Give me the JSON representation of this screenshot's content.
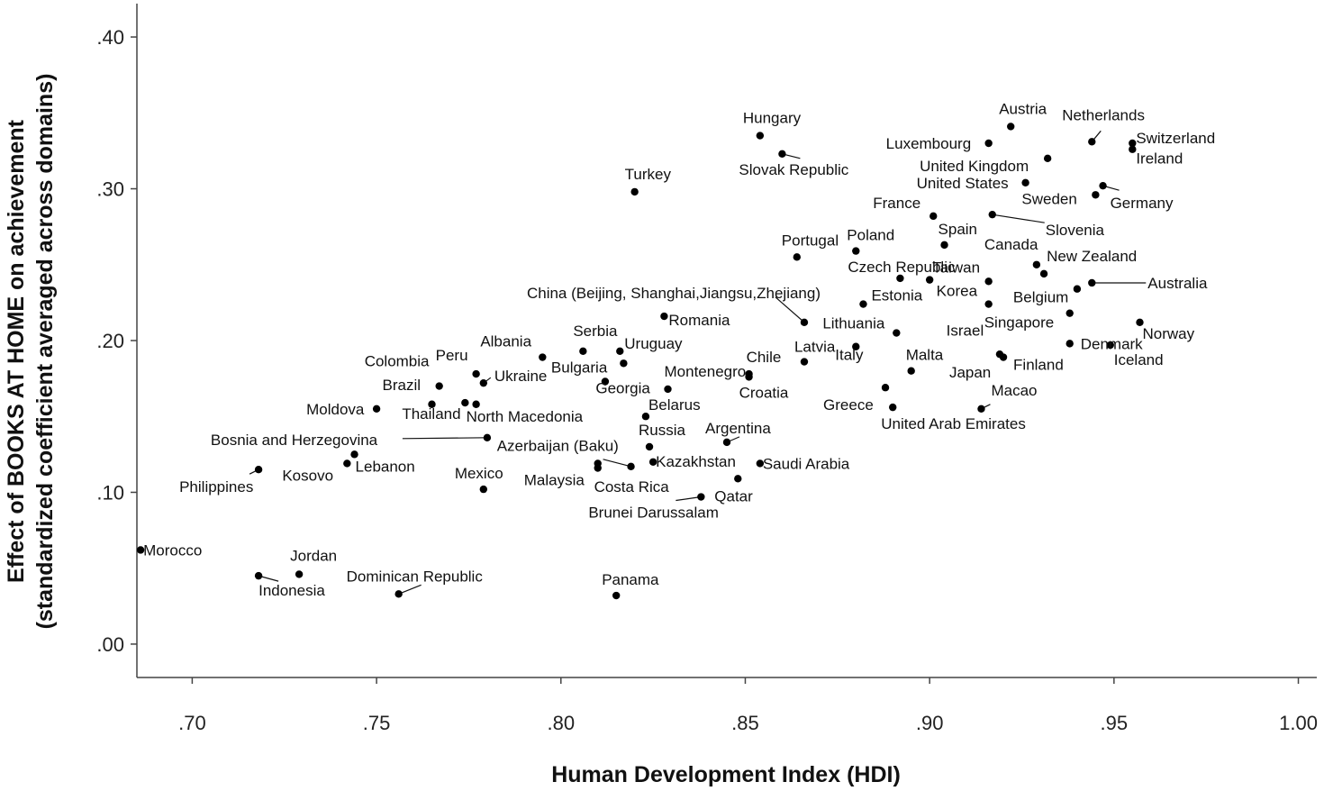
{
  "chart_data": {
    "type": "scatter",
    "title": "",
    "xlabel": "Human Development Index (HDI)",
    "ylabel_line1": "Effect of BOOKS AT HOME on achievement",
    "ylabel_line2": "(standardized coefficient averaged across domains)",
    "xlim": [
      0.685,
      1.005
    ],
    "ylim": [
      -0.022,
      0.422
    ],
    "x_ticks": [
      0.7,
      0.75,
      0.8,
      0.85,
      0.9,
      0.95,
      1.0
    ],
    "x_tick_labels": [
      ".70",
      ".75",
      ".80",
      ".85",
      ".90",
      ".95",
      "1.00"
    ],
    "y_ticks": [
      0.0,
      0.1,
      0.2,
      0.3,
      0.4
    ],
    "y_tick_labels": [
      ".00",
      ".10",
      ".20",
      ".30",
      ".40"
    ],
    "grid": false,
    "point_color": "#000000",
    "points": [
      {
        "label": "Morocco",
        "x": 0.686,
        "y": 0.062
      },
      {
        "label": "Indonesia",
        "x": 0.718,
        "y": 0.045
      },
      {
        "label": "Jordan",
        "x": 0.729,
        "y": 0.046
      },
      {
        "label": "Philippines",
        "x": 0.718,
        "y": 0.115
      },
      {
        "label": "Kosovo",
        "x": 0.742,
        "y": 0.119
      },
      {
        "label": "Lebanon",
        "x": 0.744,
        "y": 0.125
      },
      {
        "label": "Dominican Republic",
        "x": 0.756,
        "y": 0.033
      },
      {
        "label": "Moldova",
        "x": 0.75,
        "y": 0.155
      },
      {
        "label": "Brazil",
        "x": 0.765,
        "y": 0.158
      },
      {
        "label": "Colombia",
        "x": 0.767,
        "y": 0.17
      },
      {
        "label": "Peru",
        "x": 0.777,
        "y": 0.178
      },
      {
        "label": "Ukraine",
        "x": 0.779,
        "y": 0.172
      },
      {
        "label": "Thailand",
        "x": 0.774,
        "y": 0.159
      },
      {
        "label": "North Macedonia",
        "x": 0.777,
        "y": 0.158
      },
      {
        "label": "Bosnia and Herzegovina",
        "x": 0.78,
        "y": 0.136
      },
      {
        "label": "Mexico",
        "x": 0.779,
        "y": 0.102
      },
      {
        "label": "Albania",
        "x": 0.795,
        "y": 0.189
      },
      {
        "label": "Serbia",
        "x": 0.806,
        "y": 0.193
      },
      {
        "label": "Bulgaria",
        "x": 0.812,
        "y": 0.173
      },
      {
        "label": "Uruguay",
        "x": 0.816,
        "y": 0.193
      },
      {
        "label": "Georgia",
        "x": 0.817,
        "y": 0.185
      },
      {
        "label": "Malaysia",
        "x": 0.81,
        "y": 0.116
      },
      {
        "label": "Costa Rica",
        "x": 0.819,
        "y": 0.117
      },
      {
        "label": "Azerbaijan (Baku)",
        "x": 0.81,
        "y": 0.119
      },
      {
        "label": "Panama",
        "x": 0.815,
        "y": 0.032
      },
      {
        "label": "Turkey",
        "x": 0.82,
        "y": 0.298
      },
      {
        "label": "Belarus",
        "x": 0.823,
        "y": 0.15
      },
      {
        "label": "Russia",
        "x": 0.824,
        "y": 0.13
      },
      {
        "label": "Kazakhstan",
        "x": 0.825,
        "y": 0.12
      },
      {
        "label": "Montenegro",
        "x": 0.829,
        "y": 0.168
      },
      {
        "label": "Romania",
        "x": 0.828,
        "y": 0.216
      },
      {
        "label": "Brunei Darussalam",
        "x": 0.838,
        "y": 0.097
      },
      {
        "label": "Argentina",
        "x": 0.845,
        "y": 0.133
      },
      {
        "label": "Qatar",
        "x": 0.848,
        "y": 0.109
      },
      {
        "label": "Saudi Arabia",
        "x": 0.854,
        "y": 0.119
      },
      {
        "label": "Chile",
        "x": 0.851,
        "y": 0.178
      },
      {
        "label": "Croatia",
        "x": 0.851,
        "y": 0.176
      },
      {
        "label": "Hungary",
        "x": 0.854,
        "y": 0.335
      },
      {
        "label": "Slovak Republic",
        "x": 0.86,
        "y": 0.323
      },
      {
        "label": "China (Beijing, Shanghai,Jiangsu,Zhejiang)",
        "x": 0.866,
        "y": 0.212
      },
      {
        "label": "Portugal",
        "x": 0.864,
        "y": 0.255
      },
      {
        "label": "Latvia",
        "x": 0.866,
        "y": 0.186
      },
      {
        "label": "Poland",
        "x": 0.88,
        "y": 0.259
      },
      {
        "label": "Czech Republic",
        "x": 0.892,
        "y": 0.241
      },
      {
        "label": "Estonia",
        "x": 0.882,
        "y": 0.224
      },
      {
        "label": "Lithuania",
        "x": 0.891,
        "y": 0.205
      },
      {
        "label": "Greece",
        "x": 0.888,
        "y": 0.169
      },
      {
        "label": "United Arab Emirates",
        "x": 0.89,
        "y": 0.156
      },
      {
        "label": "Italy",
        "x": 0.88,
        "y": 0.196
      },
      {
        "label": "Malta",
        "x": 0.895,
        "y": 0.18
      },
      {
        "label": "France",
        "x": 0.901,
        "y": 0.282
      },
      {
        "label": "Spain",
        "x": 0.904,
        "y": 0.263
      },
      {
        "label": "Taiwan",
        "x": 0.9,
        "y": 0.24
      },
      {
        "label": "Korea",
        "x": 0.916,
        "y": 0.239
      },
      {
        "label": "Israel",
        "x": 0.916,
        "y": 0.224
      },
      {
        "label": "Japan",
        "x": 0.919,
        "y": 0.191
      },
      {
        "label": "Finland",
        "x": 0.92,
        "y": 0.189
      },
      {
        "label": "Macao",
        "x": 0.914,
        "y": 0.155
      },
      {
        "label": "Luxembourg",
        "x": 0.916,
        "y": 0.33
      },
      {
        "label": "Austria",
        "x": 0.922,
        "y": 0.341
      },
      {
        "label": "United Kingdom",
        "x": 0.932,
        "y": 0.32
      },
      {
        "label": "United States",
        "x": 0.926,
        "y": 0.304
      },
      {
        "label": "Slovenia",
        "x": 0.917,
        "y": 0.283
      },
      {
        "label": "Canada",
        "x": 0.929,
        "y": 0.25
      },
      {
        "label": "New Zealand",
        "x": 0.931,
        "y": 0.244
      },
      {
        "label": "Singapore",
        "x": 0.938,
        "y": 0.218
      },
      {
        "label": "Belgium",
        "x": 0.94,
        "y": 0.234
      },
      {
        "label": "Denmark",
        "x": 0.938,
        "y": 0.198
      },
      {
        "label": "Netherlands",
        "x": 0.944,
        "y": 0.331
      },
      {
        "label": "Sweden",
        "x": 0.945,
        "y": 0.296
      },
      {
        "label": "Germany",
        "x": 0.947,
        "y": 0.302
      },
      {
        "label": "Australia",
        "x": 0.944,
        "y": 0.238
      },
      {
        "label": "Iceland",
        "x": 0.949,
        "y": 0.197
      },
      {
        "label": "Norway",
        "x": 0.957,
        "y": 0.212
      },
      {
        "label": "Switzerland",
        "x": 0.955,
        "y": 0.33
      },
      {
        "label": "Ireland",
        "x": 0.955,
        "y": 0.326
      }
    ]
  }
}
